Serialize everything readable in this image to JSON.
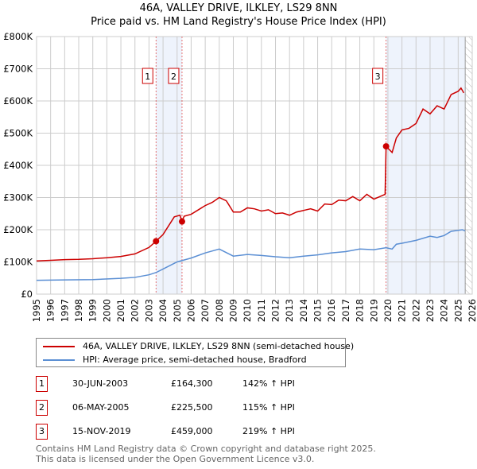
{
  "title": "46A, VALLEY DRIVE, ILKLEY, LS29 8NN",
  "subtitle": "Price paid vs. HM Land Registry's House Price Index (HPI)",
  "chart_data": {
    "type": "line",
    "xlim": [
      1995,
      2026
    ],
    "ylim": [
      0,
      800000
    ],
    "y_ticks": [
      {
        "v": 0,
        "l": "£0"
      },
      {
        "v": 100000,
        "l": "£100K"
      },
      {
        "v": 200000,
        "l": "£200K"
      },
      {
        "v": 300000,
        "l": "£300K"
      },
      {
        "v": 400000,
        "l": "£400K"
      },
      {
        "v": 500000,
        "l": "£500K"
      },
      {
        "v": 600000,
        "l": "£600K"
      },
      {
        "v": 700000,
        "l": "£700K"
      },
      {
        "v": 800000,
        "l": "£800K"
      }
    ],
    "x_ticks": [
      "1995",
      "1996",
      "1997",
      "1998",
      "1999",
      "2000",
      "2001",
      "2002",
      "2003",
      "2004",
      "2005",
      "2006",
      "2007",
      "2008",
      "2009",
      "2010",
      "2011",
      "2012",
      "2013",
      "2014",
      "2015",
      "2016",
      "2017",
      "2018",
      "2019",
      "2020",
      "2021",
      "2022",
      "2023",
      "2024",
      "2025",
      "2026"
    ],
    "series": [
      {
        "name": "46A, VALLEY DRIVE, ILKLEY, LS29 8NN (semi-detached house)",
        "color": "#cc0000",
        "x": [
          1995,
          1996,
          1997,
          1998,
          1999,
          2000,
          2001,
          2002,
          2003,
          2003.5,
          2004,
          2004.8,
          2005.2,
          2005.35,
          2005.5,
          2006,
          2007,
          2007.5,
          2008,
          2008.5,
          2009,
          2009.5,
          2010,
          2010.5,
          2011,
          2011.5,
          2012,
          2012.5,
          2013,
          2013.5,
          2014,
          2014.5,
          2015,
          2015.5,
          2016,
          2016.5,
          2017,
          2017.5,
          2018,
          2018.5,
          2019,
          2019.8,
          2019.87,
          2020.3,
          2020.6,
          2021,
          2021.5,
          2022,
          2022.5,
          2023,
          2023.5,
          2024,
          2024.5,
          2025,
          2025.2,
          2025.4
        ],
        "y": [
          103000,
          105000,
          107000,
          108000,
          110000,
          113000,
          117000,
          125000,
          145000,
          164300,
          185000,
          240000,
          245000,
          225500,
          242000,
          248000,
          275000,
          285000,
          300000,
          290000,
          255000,
          255000,
          268000,
          265000,
          258000,
          262000,
          250000,
          252000,
          245000,
          255000,
          260000,
          265000,
          258000,
          280000,
          278000,
          292000,
          290000,
          303000,
          290000,
          310000,
          295000,
          310000,
          459000,
          440000,
          485000,
          510000,
          515000,
          530000,
          575000,
          560000,
          585000,
          575000,
          620000,
          630000,
          640000,
          625000
        ]
      },
      {
        "name": "HPI: Average price, semi-detached house, Bradford",
        "color": "#5b8fd4",
        "x": [
          1995,
          1997,
          1999,
          2001,
          2002,
          2003,
          2003.5,
          2004,
          2005,
          2006,
          2007,
          2008,
          2009,
          2010,
          2011,
          2012,
          2013,
          2014,
          2015,
          2016,
          2017,
          2018,
          2019,
          2019.87,
          2020.3,
          2020.6,
          2021,
          2022,
          2023,
          2023.5,
          2024,
          2024.5,
          2025.3,
          2025.5
        ],
        "y": [
          43000,
          44000,
          45000,
          49000,
          52000,
          60000,
          67000,
          78000,
          100000,
          112000,
          128000,
          140000,
          118000,
          123000,
          120000,
          116000,
          113000,
          118000,
          122000,
          128000,
          132000,
          140000,
          138000,
          144000,
          140000,
          155000,
          158000,
          167000,
          180000,
          176000,
          182000,
          195000,
          200000,
          196000
        ]
      }
    ],
    "sales": [
      {
        "label": "1",
        "x": 2003.5,
        "price": 164300,
        "date": "30-JUN-2003",
        "price_text": "£164,300",
        "hpi": "142% ↑ HPI"
      },
      {
        "label": "2",
        "x": 2005.35,
        "price": 225500,
        "date": "06-MAY-2005",
        "price_text": "£225,500",
        "hpi": "115% ↑ HPI"
      },
      {
        "label": "3",
        "x": 2019.87,
        "price": 459000,
        "date": "15-NOV-2019",
        "price_text": "£459,000",
        "hpi": "219% ↑ HPI"
      }
    ],
    "data_end": 2025.5
  },
  "footer": [
    "Contains HM Land Registry data © Crown copyright and database right 2025.",
    "This data is licensed under the Open Government Licence v3.0."
  ]
}
